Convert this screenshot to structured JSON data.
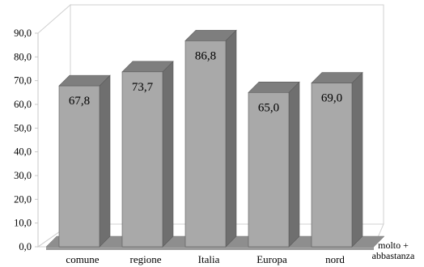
{
  "chart_data": {
    "type": "bar",
    "categories": [
      "comune",
      "regione",
      "Italia",
      "Europa",
      "nord"
    ],
    "values": [
      67.8,
      73.7,
      86.8,
      65.0,
      69.0
    ],
    "value_labels": [
      "67,8",
      "73,7",
      "86,8",
      "65,0",
      "69,0"
    ],
    "y_ticks": [
      "0,0",
      "10,0",
      "20,0",
      "30,0",
      "40,0",
      "50,0",
      "60,0",
      "70,0",
      "80,0",
      "90,0"
    ],
    "ylim": [
      0,
      90
    ],
    "series": [
      {
        "name": "molto + abbastanza",
        "values": [
          67.8,
          73.7,
          86.8,
          65.0,
          69.0
        ]
      }
    ],
    "legend_lines": [
      "molto +",
      "abbastanza"
    ],
    "legend_position": "bottom-right",
    "grid": false,
    "style": "3d-column",
    "colors": {
      "bar_front": "#a9a9a9",
      "bar_top": "#7e7e7e",
      "bar_side": "#6f6f6f",
      "floor": "#8e8e8e"
    }
  }
}
